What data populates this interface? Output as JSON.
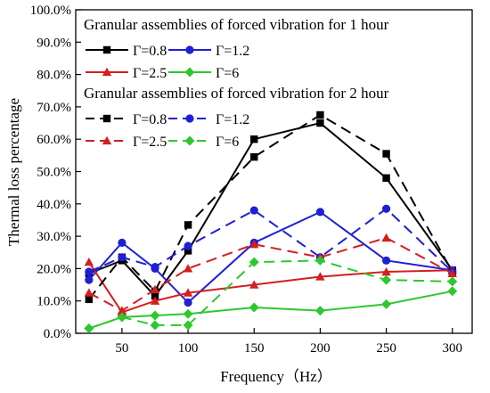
{
  "chart_data": {
    "type": "line",
    "xlabel": "Frequency（Hz）",
    "ylabel": "Thermal loss percentage",
    "x": [
      25,
      50,
      75,
      100,
      150,
      200,
      250,
      300
    ],
    "xticks": [
      50,
      100,
      150,
      200,
      250,
      300
    ],
    "xlim": [
      15,
      315
    ],
    "ylim": [
      0,
      100
    ],
    "yticks": [
      0,
      10,
      20,
      30,
      40,
      50,
      60,
      70,
      80,
      90,
      100
    ],
    "ytick_labels": [
      "0.0%",
      "10.0%",
      "20.0%",
      "30.0%",
      "40.0%",
      "50.0%",
      "60.0%",
      "70.0%",
      "80.0%",
      "90.0%",
      "100.0%"
    ],
    "grid": false,
    "legend_groups": [
      {
        "title": "Granular assemblies of forced vibration for 1 hour",
        "line_style": "solid"
      },
      {
        "title": "Granular assemblies of forced vibration for 2 hour",
        "line_style": "dashed"
      }
    ],
    "series": [
      {
        "name": "Γ=0.8",
        "group": 0,
        "color": "#000000",
        "marker": "square",
        "dash": false,
        "values": [
          18.5,
          22.5,
          11.5,
          25.5,
          60.0,
          65.0,
          48.0,
          19.5
        ]
      },
      {
        "name": "Γ=1.2",
        "group": 0,
        "color": "#1f1fd6",
        "marker": "circle",
        "dash": false,
        "values": [
          16.5,
          28.0,
          20.0,
          9.5,
          28.0,
          37.5,
          22.5,
          19.5
        ]
      },
      {
        "name": "Γ=2.5",
        "group": 0,
        "color": "#d41f1f",
        "marker": "triangle",
        "dash": false,
        "values": [
          22.0,
          6.5,
          10.0,
          12.5,
          15.0,
          17.5,
          19.0,
          19.5
        ]
      },
      {
        "name": "Γ=6",
        "group": 0,
        "color": "#2ec82e",
        "marker": "diamond",
        "dash": false,
        "values": [
          1.5,
          5.0,
          5.5,
          6.0,
          8.0,
          7.0,
          9.0,
          13.0
        ]
      },
      {
        "name": "Γ=0.8",
        "group": 1,
        "color": "#000000",
        "marker": "square",
        "dash": true,
        "values": [
          10.5,
          23.5,
          13.0,
          33.5,
          54.5,
          67.5,
          55.5,
          19.0
        ]
      },
      {
        "name": "Γ=1.2",
        "group": 1,
        "color": "#1f1fd6",
        "marker": "circle",
        "dash": true,
        "values": [
          19.0,
          23.5,
          20.5,
          27.0,
          38.0,
          23.5,
          38.5,
          19.0
        ]
      },
      {
        "name": "Γ=2.5",
        "group": 1,
        "color": "#d41f1f",
        "marker": "triangle",
        "dash": true,
        "values": [
          12.5,
          7.0,
          13.5,
          20.0,
          27.5,
          23.5,
          29.5,
          18.5
        ]
      },
      {
        "name": "Γ=6",
        "group": 1,
        "color": "#2ec82e",
        "marker": "diamond",
        "dash": true,
        "values": [
          1.5,
          5.0,
          2.5,
          2.5,
          22.0,
          22.5,
          16.5,
          16.0
        ]
      }
    ]
  }
}
